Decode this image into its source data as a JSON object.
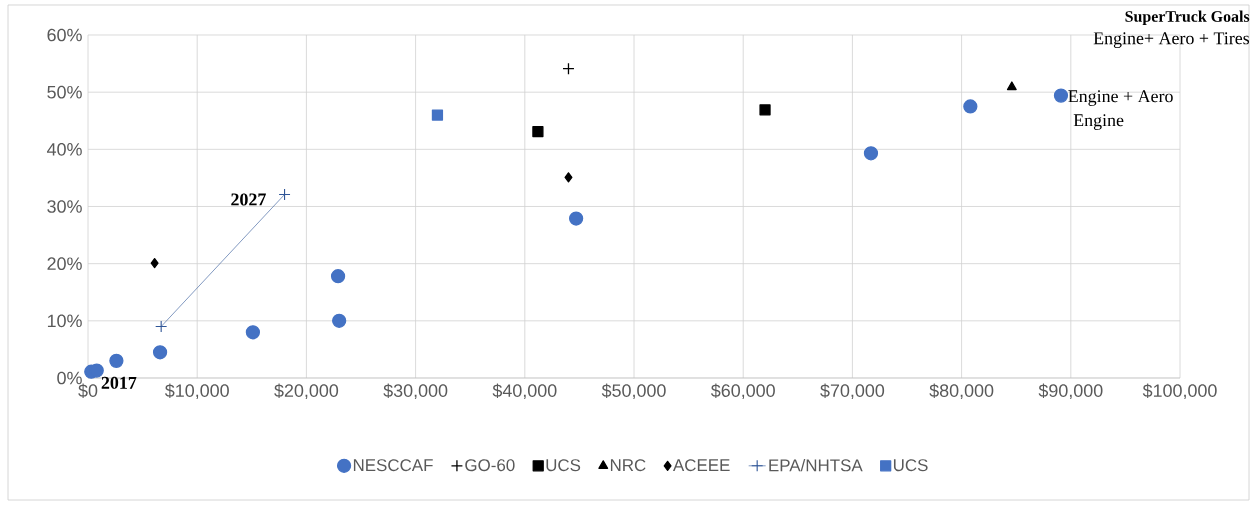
{
  "chart_data": {
    "type": "scatter",
    "xlim": [
      0,
      100000
    ],
    "ylim": [
      0,
      60
    ],
    "xticks": [
      {
        "value": 0,
        "label": "$0"
      },
      {
        "value": 10000,
        "label": "$10,000"
      },
      {
        "value": 20000,
        "label": "$20,000"
      },
      {
        "value": 30000,
        "label": "$30,000"
      },
      {
        "value": 40000,
        "label": "$40,000"
      },
      {
        "value": 50000,
        "label": "$50,000"
      },
      {
        "value": 60000,
        "label": "$60,000"
      },
      {
        "value": 70000,
        "label": "$70,000"
      },
      {
        "value": 80000,
        "label": "$80,000"
      },
      {
        "value": 90000,
        "label": "$90,000"
      },
      {
        "value": 100000,
        "label": "$100,000"
      }
    ],
    "yticks": [
      {
        "value": 0,
        "label": "0%"
      },
      {
        "value": 10,
        "label": "10%"
      },
      {
        "value": 20,
        "label": "20%"
      },
      {
        "value": 30,
        "label": "30%"
      },
      {
        "value": 40,
        "label": "40%"
      },
      {
        "value": 50,
        "label": "50%"
      },
      {
        "value": 60,
        "label": "60%"
      }
    ],
    "grid": true,
    "legend": "bottom",
    "series": [
      {
        "name": "NESCCAF",
        "color": "#4472c4",
        "marker": "circle",
        "x": [
          300,
          800,
          2600,
          6600,
          15100,
          22900,
          23000,
          44700,
          71700,
          80800,
          89100
        ],
        "values": [
          1.1,
          1.3,
          3.0,
          4.5,
          8.0,
          17.8,
          10.0,
          27.9,
          39.3,
          47.5,
          49.4
        ]
      },
      {
        "name": "GO-60",
        "color": "#000000",
        "marker": "cross",
        "x": [
          44000
        ],
        "values": [
          54.1
        ]
      },
      {
        "name": "UCS",
        "color": "#000000",
        "marker": "square",
        "x": [
          41200,
          62000
        ],
        "values": [
          43.1,
          46.9
        ]
      },
      {
        "name": "NRC",
        "color": "#000000",
        "marker": "triangle",
        "x": [
          84600
        ],
        "values": [
          50.9
        ]
      },
      {
        "name": "ACEEE",
        "color": "#000000",
        "marker": "diamond",
        "x": [
          6100,
          44000
        ],
        "values": [
          20.1,
          35.1
        ]
      },
      {
        "name": "EPA/NHTSA",
        "type": "line",
        "color": "#2f5597",
        "marker": "cross",
        "x": [
          6700,
          18000
        ],
        "values": [
          9.0,
          32.1
        ]
      },
      {
        "name": "UCS",
        "color": "#4472c4",
        "marker": "square",
        "x": [
          32000
        ],
        "values": [
          46.0
        ]
      }
    ],
    "annotations": [
      {
        "text": "2027",
        "x": 18000,
        "y": 32.1
      },
      {
        "text": "2017",
        "x": 800,
        "y": 1.3
      },
      "SuperTruck Goals",
      "Engine+ Aero + Tires",
      "Engine + Aero",
      "Engine"
    ]
  }
}
